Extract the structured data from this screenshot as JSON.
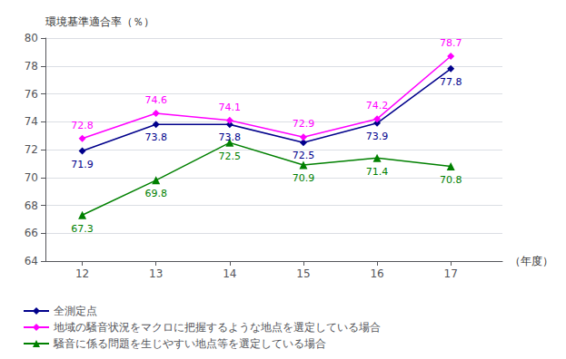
{
  "chart_data": {
    "type": "line",
    "ylabel": "環境基準適合率（％）",
    "xlabel": "（年度）",
    "x": [
      12,
      13,
      14,
      15,
      16,
      17
    ],
    "series": [
      {
        "name": "全測定点",
        "color": "#00008B",
        "marker": "diamond",
        "values": [
          71.9,
          73.8,
          73.8,
          72.5,
          73.9,
          77.8
        ]
      },
      {
        "name": "地域の騒音状況をマクロに把握するような地点を選定している場合",
        "color": "#FF00FF",
        "marker": "diamond",
        "values": [
          72.8,
          74.6,
          74.1,
          72.9,
          74.2,
          78.7
        ]
      },
      {
        "name": "騒音に係る問題を生じやすい地点等を選定している場合",
        "color": "#008000",
        "marker": "triangle",
        "values": [
          67.3,
          69.8,
          72.5,
          70.9,
          71.4,
          70.8
        ]
      }
    ],
    "xlim": [
      11.5,
      17.7
    ],
    "xticks": [
      12,
      13,
      14,
      15,
      16,
      17
    ],
    "ylim": [
      64,
      80
    ],
    "yticks": [
      64,
      66,
      68,
      70,
      72,
      74,
      76,
      78,
      80
    ],
    "grid": true,
    "legend": "bottom",
    "data_labels": true
  }
}
